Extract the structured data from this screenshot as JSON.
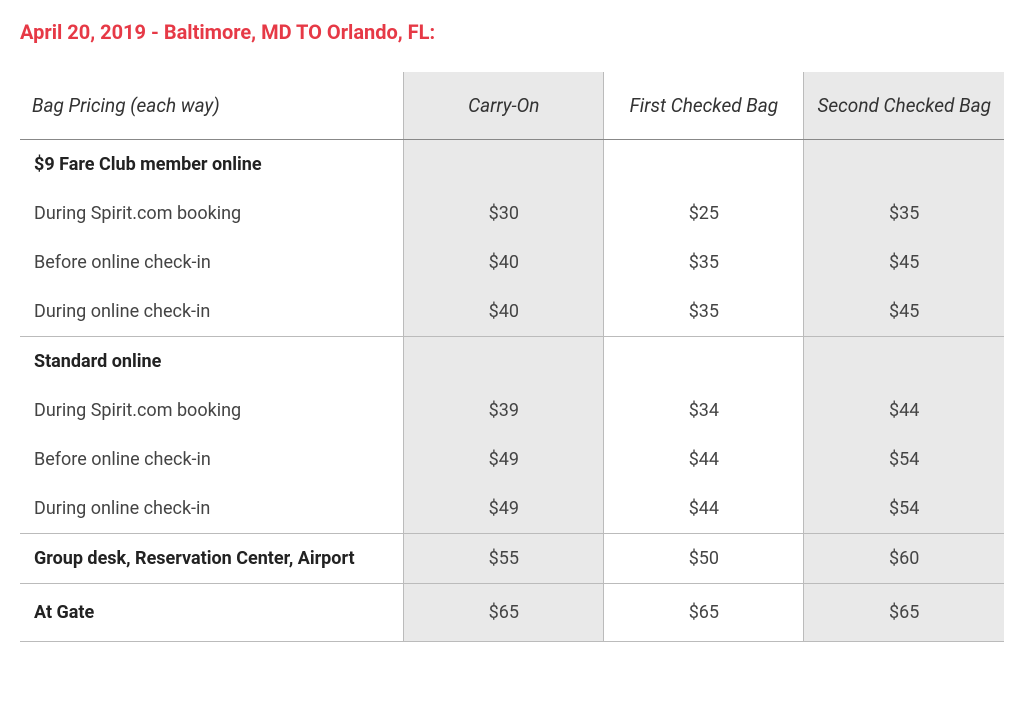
{
  "title": "April 20, 2019 - Baltimore, MD TO Orlando, FL:",
  "columns": [
    "Bag Pricing (each way)",
    "Carry-On",
    "First Checked Bag",
    "Second Checked Bag"
  ],
  "rows": [
    {
      "type": "section",
      "label": "$9 Fare Club member online",
      "cells": [
        "",
        "",
        ""
      ],
      "topBorder": false
    },
    {
      "type": "data",
      "label": "During Spirit.com booking",
      "cells": [
        "$30",
        "$25",
        "$35"
      ]
    },
    {
      "type": "data",
      "label": "Before online check-in",
      "cells": [
        "$40",
        "$35",
        "$45"
      ]
    },
    {
      "type": "data",
      "label": "During online check-in",
      "cells": [
        "$40",
        "$35",
        "$45"
      ]
    },
    {
      "type": "section",
      "label": "Standard online",
      "cells": [
        "",
        "",
        ""
      ],
      "topBorder": true
    },
    {
      "type": "data",
      "label": "During Spirit.com booking",
      "cells": [
        "$39",
        "$34",
        "$44"
      ]
    },
    {
      "type": "data",
      "label": "Before online check-in",
      "cells": [
        "$49",
        "$44",
        "$54"
      ]
    },
    {
      "type": "data",
      "label": "During online check-in",
      "cells": [
        "$49",
        "$44",
        "$54"
      ]
    },
    {
      "type": "section",
      "label": "Group desk, Reservation Center, Airport",
      "cells": [
        "$55",
        "$50",
        "$60"
      ],
      "topBorder": true
    },
    {
      "type": "section",
      "label": "At Gate",
      "cells": [
        "$65",
        "$65",
        "$65"
      ],
      "topBorder": true,
      "last": true
    }
  ],
  "colors": {
    "title": "#e63946",
    "shaded_bg": "#e9e9e9",
    "border": "#bbbbbb",
    "header_border": "#888888",
    "text": "#444444",
    "bold_text": "#222222"
  },
  "fonts": {
    "title_size": 20,
    "header_size": 19,
    "cell_size": 18
  }
}
